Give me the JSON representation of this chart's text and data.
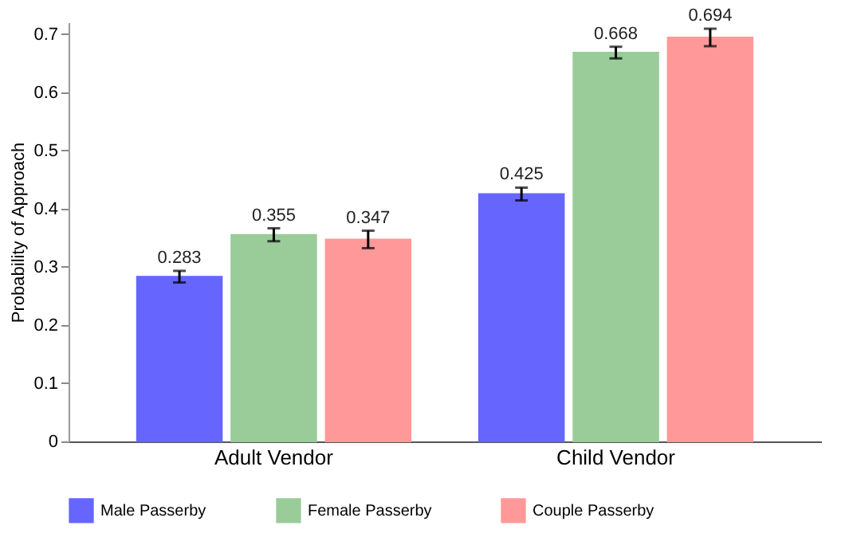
{
  "chart_data": {
    "type": "bar",
    "ylabel": "Probability of Approach",
    "categories": [
      "Adult Vendor",
      "Child Vendor"
    ],
    "series": [
      {
        "name": "Male Passerby",
        "color": "#6666ff",
        "values": [
          0.283,
          0.425
        ],
        "errors": [
          0.01,
          0.011
        ]
      },
      {
        "name": "Female Passerby",
        "color": "#99cc99",
        "values": [
          0.355,
          0.668
        ],
        "errors": [
          0.011,
          0.01
        ]
      },
      {
        "name": "Couple Passerby",
        "color": "#ff9999",
        "values": [
          0.347,
          0.694
        ],
        "errors": [
          0.015,
          0.015
        ]
      }
    ],
    "ylim": [
      0,
      0.72
    ],
    "yticks": [
      0,
      0.1,
      0.2,
      0.3,
      0.4,
      0.5,
      0.6,
      0.7
    ],
    "data_labels": true,
    "grid": false,
    "legend": "bottom"
  }
}
